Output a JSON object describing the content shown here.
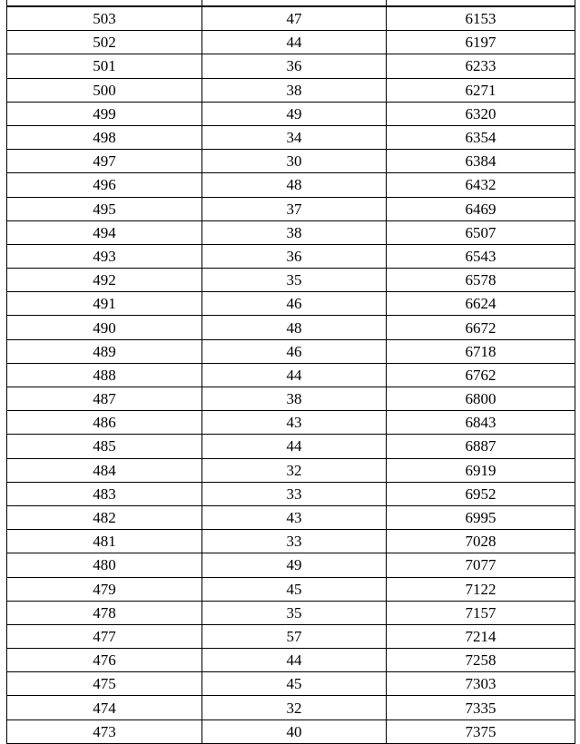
{
  "table": {
    "rows": [
      [
        "503",
        "47",
        "6153"
      ],
      [
        "502",
        "44",
        "6197"
      ],
      [
        "501",
        "36",
        "6233"
      ],
      [
        "500",
        "38",
        "6271"
      ],
      [
        "499",
        "49",
        "6320"
      ],
      [
        "498",
        "34",
        "6354"
      ],
      [
        "497",
        "30",
        "6384"
      ],
      [
        "496",
        "48",
        "6432"
      ],
      [
        "495",
        "37",
        "6469"
      ],
      [
        "494",
        "38",
        "6507"
      ],
      [
        "493",
        "36",
        "6543"
      ],
      [
        "492",
        "35",
        "6578"
      ],
      [
        "491",
        "46",
        "6624"
      ],
      [
        "490",
        "48",
        "6672"
      ],
      [
        "489",
        "46",
        "6718"
      ],
      [
        "488",
        "44",
        "6762"
      ],
      [
        "487",
        "38",
        "6800"
      ],
      [
        "486",
        "43",
        "6843"
      ],
      [
        "485",
        "44",
        "6887"
      ],
      [
        "484",
        "32",
        "6919"
      ],
      [
        "483",
        "33",
        "6952"
      ],
      [
        "482",
        "43",
        "6995"
      ],
      [
        "481",
        "33",
        "7028"
      ],
      [
        "480",
        "49",
        "7077"
      ],
      [
        "479",
        "45",
        "7122"
      ],
      [
        "478",
        "35",
        "7157"
      ],
      [
        "477",
        "57",
        "7214"
      ],
      [
        "476",
        "44",
        "7258"
      ],
      [
        "475",
        "45",
        "7303"
      ],
      [
        "474",
        "32",
        "7335"
      ],
      [
        "473",
        "40",
        "7375"
      ]
    ]
  }
}
